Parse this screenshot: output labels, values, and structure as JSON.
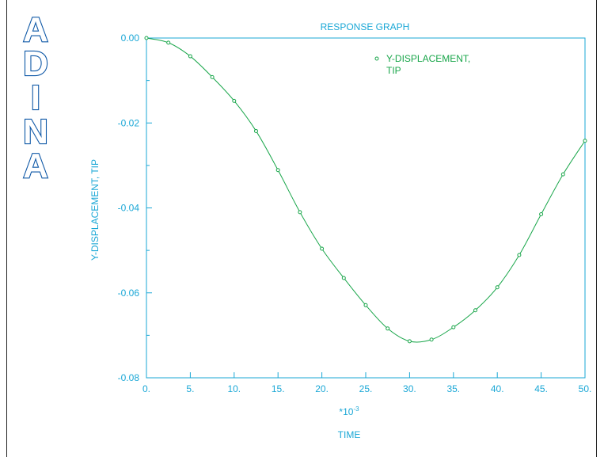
{
  "logo": {
    "text": "ADINA",
    "letters": [
      "A",
      "D",
      "I",
      "N",
      "A"
    ],
    "color": "#0d57a6"
  },
  "colors": {
    "axis": "#1aa7d6",
    "series": "#19a64a"
  },
  "chart_data": {
    "type": "line",
    "title": "RESPONSE GRAPH",
    "xlabel": "TIME",
    "ylabel": "Y-DISPLACEMENT, TIP",
    "x_multiplier": {
      "base": "*10",
      "exponent": "-3"
    },
    "xlim": [
      0,
      50
    ],
    "ylim": [
      -0.08,
      0
    ],
    "x_ticks": [
      0,
      5,
      10,
      15,
      20,
      25,
      30,
      35,
      40,
      45,
      50
    ],
    "x_tick_labels": [
      "0.",
      "5.",
      "10.",
      "15.",
      "20.",
      "25.",
      "30.",
      "35.",
      "40.",
      "45.",
      "50."
    ],
    "y_ticks": [
      0,
      -0.02,
      -0.04,
      -0.06,
      -0.08
    ],
    "y_tick_labels": [
      "0.00",
      "-0.02",
      "-0.04",
      "-0.06",
      "-0.08"
    ],
    "legend_position": "top-right",
    "grid": false,
    "series": [
      {
        "name": "Y-DISPLACEMENT, TIP",
        "legend_lines": [
          "Y-DISPLACEMENT,",
          "TIP"
        ],
        "x": [
          0,
          2.5,
          5,
          7.5,
          10,
          12.5,
          15,
          17.5,
          20,
          22.5,
          25,
          27.5,
          30,
          32.5,
          35,
          37.5,
          40,
          42.5,
          45,
          47.5,
          50
        ],
        "y": [
          0.0,
          -0.0011,
          -0.0043,
          -0.0092,
          -0.0148,
          -0.0219,
          -0.0311,
          -0.041,
          -0.0496,
          -0.0565,
          -0.0629,
          -0.0684,
          -0.0714,
          -0.071,
          -0.0681,
          -0.0641,
          -0.0587,
          -0.0511,
          -0.0415,
          -0.0321,
          -0.0242
        ]
      }
    ]
  }
}
